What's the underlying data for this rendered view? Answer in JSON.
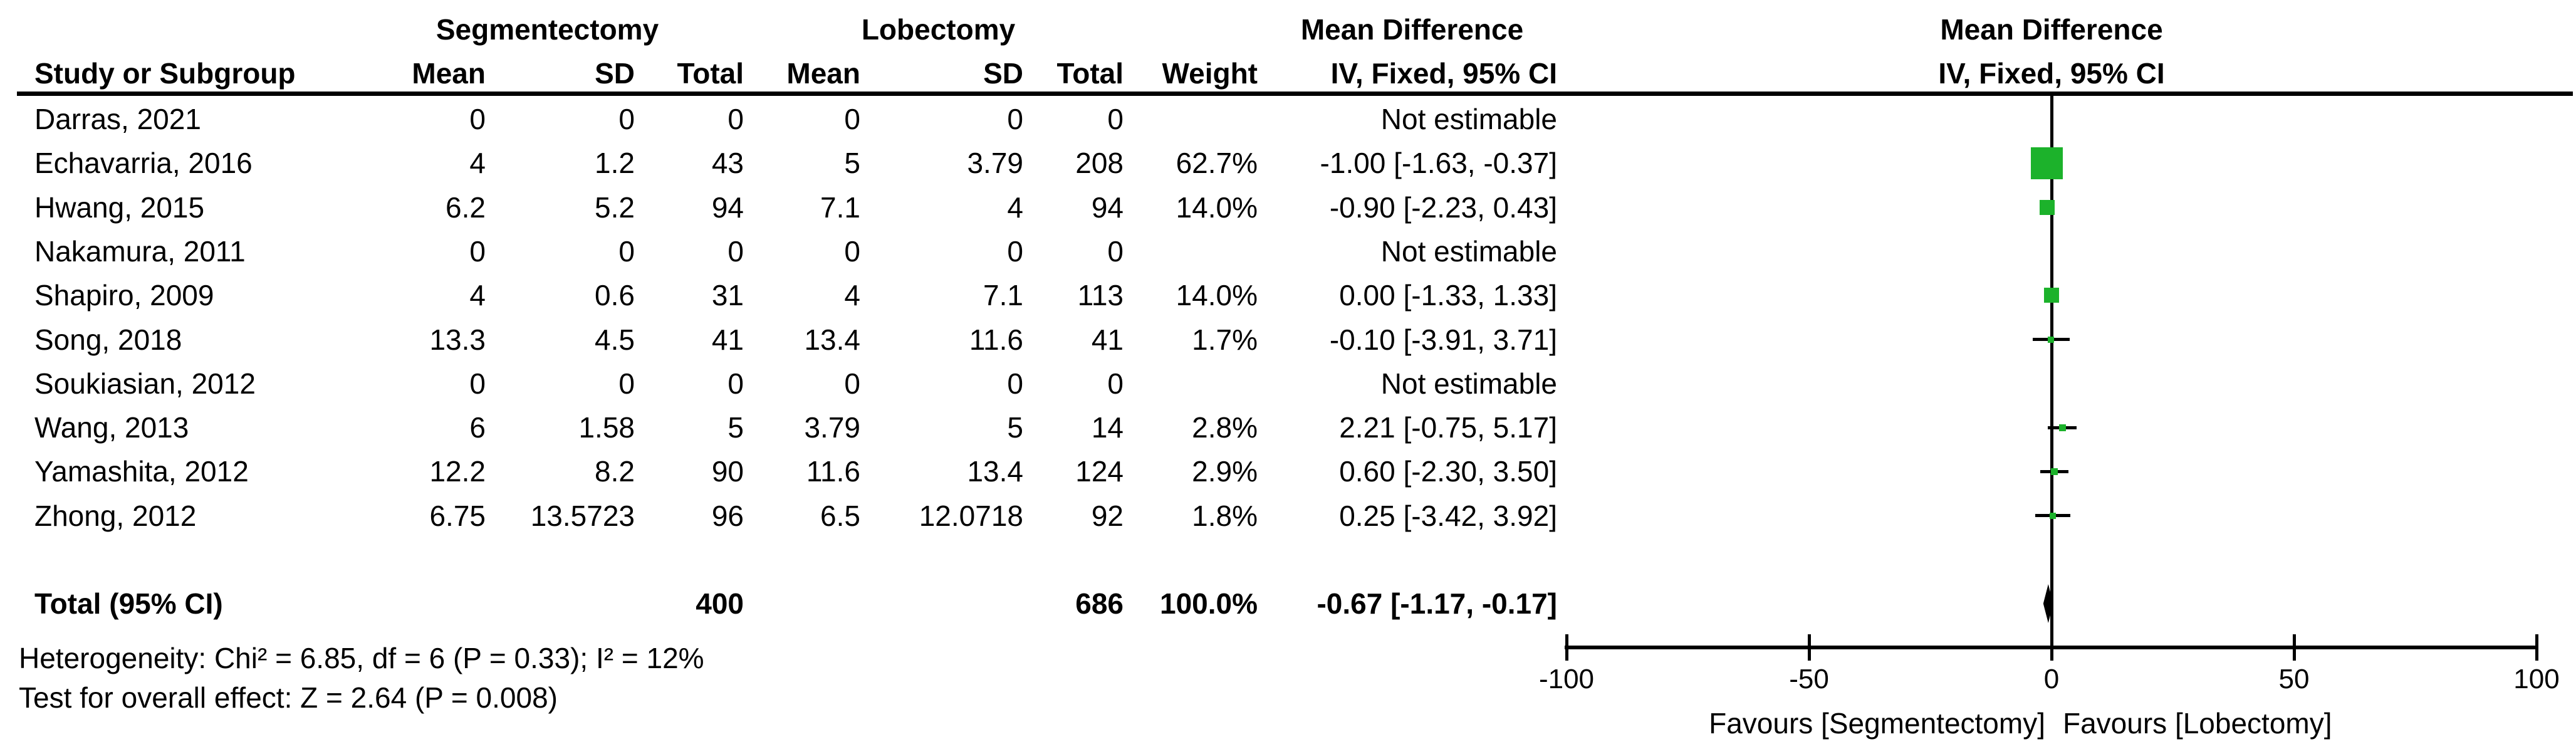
{
  "colors": {
    "background": "#FFFFFF",
    "text": "#000000",
    "line": "#000000",
    "marker_green": "#1CB22B",
    "diamond_black": "#000000"
  },
  "header": {
    "group_segmentectomy": "Segmentectomy",
    "group_lobectomy": "Lobectomy",
    "group_mean_difference_table": "Mean Difference",
    "group_mean_difference_plot": "Mean Difference",
    "col_study": "Study or Subgroup",
    "col_mean_seg": "Mean",
    "col_sd_seg": "SD",
    "col_total_seg": "Total",
    "col_mean_lob": "Mean",
    "col_sd_lob": "SD",
    "col_total_lob": "Total",
    "col_weight": "Weight",
    "col_ci_table": "IV, Fixed, 95% CI",
    "col_ci_plot": "IV, Fixed, 95% CI"
  },
  "rows": [
    {
      "study": "Darras, 2021",
      "mean1": "0",
      "sd1": "0",
      "total1": "0",
      "mean2": "0",
      "sd2": "0",
      "total2": "0",
      "weight": "",
      "ci": "Not estimable"
    },
    {
      "study": "Echavarria, 2016",
      "mean1": "4",
      "sd1": "1.2",
      "total1": "43",
      "mean2": "5",
      "sd2": "3.79",
      "total2": "208",
      "weight": "62.7%",
      "ci": "-1.00 [-1.63, -0.37]"
    },
    {
      "study": "Hwang, 2015",
      "mean1": "6.2",
      "sd1": "5.2",
      "total1": "94",
      "mean2": "7.1",
      "sd2": "4",
      "total2": "94",
      "weight": "14.0%",
      "ci": "-0.90 [-2.23, 0.43]"
    },
    {
      "study": "Nakamura, 2011",
      "mean1": "0",
      "sd1": "0",
      "total1": "0",
      "mean2": "0",
      "sd2": "0",
      "total2": "0",
      "weight": "",
      "ci": "Not estimable"
    },
    {
      "study": "Shapiro, 2009",
      "mean1": "4",
      "sd1": "0.6",
      "total1": "31",
      "mean2": "4",
      "sd2": "7.1",
      "total2": "113",
      "weight": "14.0%",
      "ci": "0.00 [-1.33, 1.33]"
    },
    {
      "study": "Song, 2018",
      "mean1": "13.3",
      "sd1": "4.5",
      "total1": "41",
      "mean2": "13.4",
      "sd2": "11.6",
      "total2": "41",
      "weight": "1.7%",
      "ci": "-0.10 [-3.91, 3.71]"
    },
    {
      "study": "Soukiasian, 2012",
      "mean1": "0",
      "sd1": "0",
      "total1": "0",
      "mean2": "0",
      "sd2": "0",
      "total2": "0",
      "weight": "",
      "ci": "Not estimable"
    },
    {
      "study": "Wang, 2013",
      "mean1": "6",
      "sd1": "1.58",
      "total1": "5",
      "mean2": "3.79",
      "sd2": "5",
      "total2": "14",
      "weight": "2.8%",
      "ci": "2.21 [-0.75, 5.17]"
    },
    {
      "study": "Yamashita, 2012",
      "mean1": "12.2",
      "sd1": "8.2",
      "total1": "90",
      "mean2": "11.6",
      "sd2": "13.4",
      "total2": "124",
      "weight": "2.9%",
      "ci": "0.60 [-2.30, 3.50]"
    },
    {
      "study": "Zhong, 2012",
      "mean1": "6.75",
      "sd1": "13.5723",
      "total1": "96",
      "mean2": "6.5",
      "sd2": "12.0718",
      "total2": "92",
      "weight": "1.8%",
      "ci": "0.25 [-3.42, 3.92]"
    }
  ],
  "total_row": {
    "label": "Total (95% CI)",
    "total_seg": "400",
    "total_lob": "686",
    "weight": "100.0%",
    "ci": "-0.67 [-1.17, -0.17]"
  },
  "footnotes": {
    "heterogeneity": "Heterogeneity: Chi² = 6.85, df = 6 (P = 0.33); I² = 12%",
    "overall_effect": "Test for overall effect: Z = 2.64 (P = 0.008)"
  },
  "chart_data": {
    "type": "forest",
    "title": "Mean Difference",
    "method": "IV, Fixed, 95% CI",
    "comparison_groups": [
      "Segmentectomy",
      "Lobectomy"
    ],
    "x_axis": {
      "min": -100,
      "max": 100,
      "ticks": [
        -100,
        -50,
        0,
        50,
        100
      ],
      "left_label": "Favours [Segmentectomy]",
      "right_label": "Favours [Lobectomy]"
    },
    "studies": [
      {
        "name": "Darras, 2021",
        "estimable": false,
        "seg_mean": 0,
        "seg_sd": 0,
        "seg_total": 0,
        "lob_mean": 0,
        "lob_sd": 0,
        "lob_total": 0
      },
      {
        "name": "Echavarria, 2016",
        "estimable": true,
        "seg_mean": 4,
        "seg_sd": 1.2,
        "seg_total": 43,
        "lob_mean": 5,
        "lob_sd": 3.79,
        "lob_total": 208,
        "weight_pct": 62.7,
        "md": -1.0,
        "ci_low": -1.63,
        "ci_high": -0.37
      },
      {
        "name": "Hwang, 2015",
        "estimable": true,
        "seg_mean": 6.2,
        "seg_sd": 5.2,
        "seg_total": 94,
        "lob_mean": 7.1,
        "lob_sd": 4,
        "lob_total": 94,
        "weight_pct": 14.0,
        "md": -0.9,
        "ci_low": -2.23,
        "ci_high": 0.43
      },
      {
        "name": "Nakamura, 2011",
        "estimable": false,
        "seg_mean": 0,
        "seg_sd": 0,
        "seg_total": 0,
        "lob_mean": 0,
        "lob_sd": 0,
        "lob_total": 0
      },
      {
        "name": "Shapiro, 2009",
        "estimable": true,
        "seg_mean": 4,
        "seg_sd": 0.6,
        "seg_total": 31,
        "lob_mean": 4,
        "lob_sd": 7.1,
        "lob_total": 113,
        "weight_pct": 14.0,
        "md": 0.0,
        "ci_low": -1.33,
        "ci_high": 1.33
      },
      {
        "name": "Song, 2018",
        "estimable": true,
        "seg_mean": 13.3,
        "seg_sd": 4.5,
        "seg_total": 41,
        "lob_mean": 13.4,
        "lob_sd": 11.6,
        "lob_total": 41,
        "weight_pct": 1.7,
        "md": -0.1,
        "ci_low": -3.91,
        "ci_high": 3.71
      },
      {
        "name": "Soukiasian, 2012",
        "estimable": false,
        "seg_mean": 0,
        "seg_sd": 0,
        "seg_total": 0,
        "lob_mean": 0,
        "lob_sd": 0,
        "lob_total": 0
      },
      {
        "name": "Wang, 2013",
        "estimable": true,
        "seg_mean": 6,
        "seg_sd": 1.58,
        "seg_total": 5,
        "lob_mean": 3.79,
        "lob_sd": 5,
        "lob_total": 14,
        "weight_pct": 2.8,
        "md": 2.21,
        "ci_low": -0.75,
        "ci_high": 5.17
      },
      {
        "name": "Yamashita, 2012",
        "estimable": true,
        "seg_mean": 12.2,
        "seg_sd": 8.2,
        "seg_total": 90,
        "lob_mean": 11.6,
        "lob_sd": 13.4,
        "lob_total": 124,
        "weight_pct": 2.9,
        "md": 0.6,
        "ci_low": -2.3,
        "ci_high": 3.5
      },
      {
        "name": "Zhong, 2012",
        "estimable": true,
        "seg_mean": 6.75,
        "seg_sd": 13.5723,
        "seg_total": 96,
        "lob_mean": 6.5,
        "lob_sd": 12.0718,
        "lob_total": 92,
        "weight_pct": 1.8,
        "md": 0.25,
        "ci_low": -3.42,
        "ci_high": 3.92
      }
    ],
    "total": {
      "name": "Total (95% CI)",
      "seg_total": 400,
      "lob_total": 686,
      "weight_pct": 100.0,
      "md": -0.67,
      "ci_low": -1.17,
      "ci_high": -0.17
    },
    "heterogeneity": {
      "chi2": 6.85,
      "df": 6,
      "p": 0.33,
      "i2_pct": 12
    },
    "overall_effect": {
      "z": 2.64,
      "p": 0.008
    }
  }
}
